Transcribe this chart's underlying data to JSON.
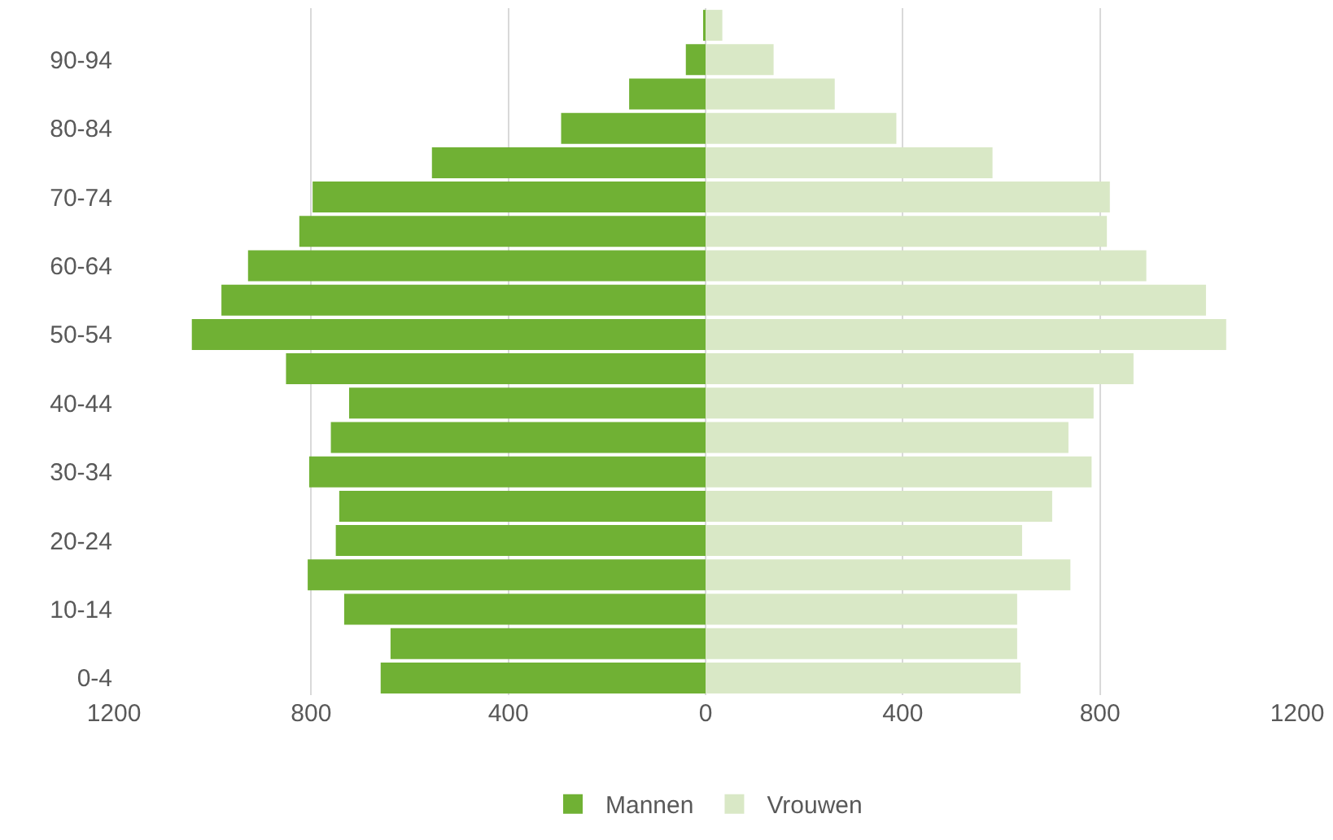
{
  "chart_data": {
    "type": "bar",
    "orientation": "horizontal",
    "stacked": true,
    "categories": [
      null,
      "90-94",
      null,
      "80-84",
      null,
      "70-74",
      null,
      "60-64",
      null,
      "50-54",
      null,
      "40-44",
      null,
      "30-34",
      null,
      "20-24",
      null,
      "10-14",
      null,
      "0-4"
    ],
    "series": [
      {
        "name": "Mannen",
        "color": "#70b134",
        "values": [
          -5,
          -40,
          -155,
          -293,
          -555,
          -797,
          -824,
          -928,
          -982,
          -1042,
          -851,
          -723,
          -760,
          -804,
          -743,
          -750,
          -807,
          -733,
          -639,
          -659
        ]
      },
      {
        "name": "Vrouwen",
        "color": "#d9e8c6",
        "values": [
          34,
          138,
          262,
          387,
          582,
          820,
          814,
          894,
          1015,
          1056,
          868,
          787,
          736,
          783,
          703,
          642,
          740,
          632,
          632,
          639
        ]
      }
    ],
    "xlim": [
      -1200,
      1200
    ],
    "xticks": [
      {
        "value": -1200,
        "label": "1200"
      },
      {
        "value": -800,
        "label": "800"
      },
      {
        "value": -400,
        "label": "400"
      },
      0,
      400,
      800,
      1200
    ],
    "grid": "x",
    "legend": "bottom"
  }
}
